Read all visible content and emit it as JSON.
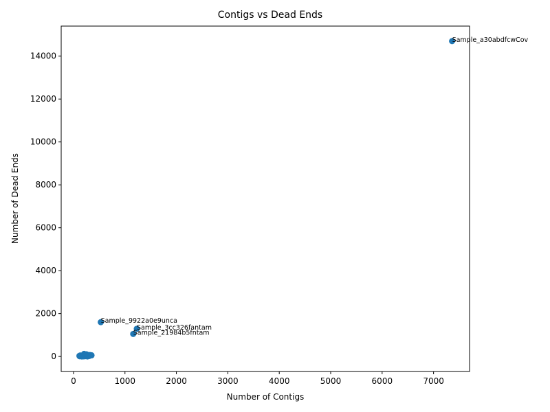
{
  "chart_data": {
    "type": "scatter",
    "title": "Contigs vs Dead Ends",
    "xlabel": "Number of Contigs",
    "ylabel": "Number of Dead Ends",
    "xlim": [
      -240,
      7700
    ],
    "ylim": [
      -700,
      15400
    ],
    "xticks": [
      0,
      1000,
      2000,
      3000,
      4000,
      5000,
      6000,
      7000
    ],
    "yticks": [
      0,
      2000,
      4000,
      6000,
      8000,
      10000,
      12000,
      14000
    ],
    "tick_labels_x": [
      "0",
      "1000",
      "2000",
      "3000",
      "4000",
      "5000",
      "6000",
      "7000"
    ],
    "tick_labels_y": [
      "0",
      "2000",
      "4000",
      "6000",
      "8000",
      "10000",
      "12000",
      "14000"
    ],
    "grid": false,
    "marker_color": "#1f77b4",
    "labeled_points": [
      {
        "x": 7360,
        "y": 14700,
        "label": "Sample_a30abdfcwCov"
      },
      {
        "x": 530,
        "y": 1600,
        "label": "Sample_9922a0e9unca"
      },
      {
        "x": 1230,
        "y": 1290,
        "label": "Sample_3cc326fantam"
      },
      {
        "x": 1160,
        "y": 1050,
        "label": "Sample_21984b5fntam"
      }
    ],
    "cluster_points": [
      {
        "x": 120,
        "y": 10
      },
      {
        "x": 140,
        "y": 30
      },
      {
        "x": 160,
        "y": 0
      },
      {
        "x": 180,
        "y": 20
      },
      {
        "x": 200,
        "y": 40
      },
      {
        "x": 220,
        "y": 10
      },
      {
        "x": 240,
        "y": 60
      },
      {
        "x": 260,
        "y": 30
      },
      {
        "x": 280,
        "y": 50
      },
      {
        "x": 300,
        "y": 20
      },
      {
        "x": 320,
        "y": 70
      },
      {
        "x": 130,
        "y": 50
      },
      {
        "x": 150,
        "y": 15
      },
      {
        "x": 170,
        "y": 45
      },
      {
        "x": 190,
        "y": 5
      },
      {
        "x": 210,
        "y": 80
      },
      {
        "x": 230,
        "y": 25
      },
      {
        "x": 250,
        "y": 100
      },
      {
        "x": 270,
        "y": 0
      },
      {
        "x": 290,
        "y": 65
      },
      {
        "x": 310,
        "y": 35
      },
      {
        "x": 115,
        "y": 30
      },
      {
        "x": 350,
        "y": 55
      },
      {
        "x": 205,
        "y": 120
      }
    ]
  }
}
